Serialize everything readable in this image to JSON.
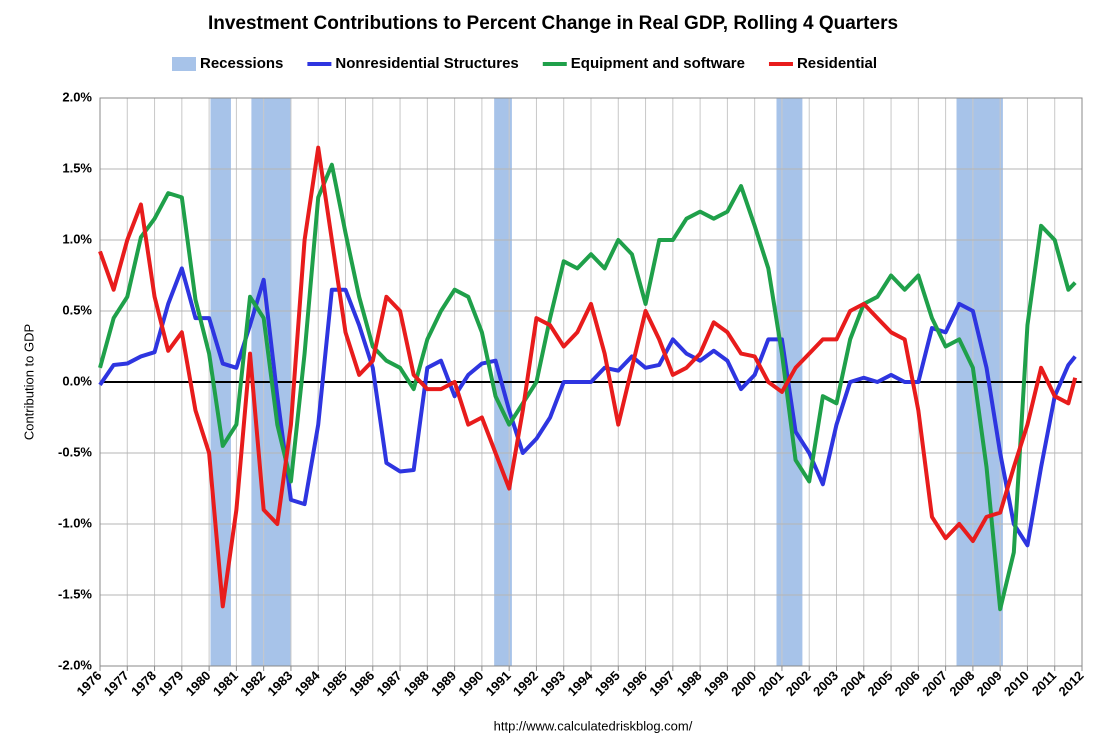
{
  "chart_data": {
    "type": "line",
    "title": "Investment Contributions to Percent Change in Real GDP, Rolling 4 Quarters",
    "y_label": "Contribution to GDP",
    "source": "http://www.calculatedriskblog.com/",
    "xlim": [
      1976,
      2012
    ],
    "xticks": [
      1976,
      1977,
      1978,
      1979,
      1980,
      1981,
      1982,
      1983,
      1984,
      1985,
      1986,
      1987,
      1988,
      1989,
      1990,
      1991,
      1992,
      1993,
      1994,
      1995,
      1996,
      1997,
      1998,
      1999,
      2000,
      2001,
      2002,
      2003,
      2004,
      2005,
      2006,
      2007,
      2008,
      2009,
      2010,
      2011,
      2012
    ],
    "ylim": [
      -2,
      2
    ],
    "yticks": [
      {
        "value": -2,
        "label": "-2.0%"
      },
      {
        "value": -1.5,
        "label": "-1.5%"
      },
      {
        "value": -1,
        "label": "-1.0%"
      },
      {
        "value": -0.5,
        "label": "-0.5%"
      },
      {
        "value": 0,
        "label": "0.0%"
      },
      {
        "value": 0.5,
        "label": "0.5%"
      },
      {
        "value": 1,
        "label": "1.0%"
      },
      {
        "value": 1.5,
        "label": "1.5%"
      },
      {
        "value": 2,
        "label": "2.0%"
      }
    ],
    "grid": true,
    "recessions": {
      "name": "Recessions",
      "color": "#a7c3e9",
      "ranges": [
        [
          1980.05,
          1980.8
        ],
        [
          1981.55,
          1983.0
        ],
        [
          1990.45,
          1991.1
        ],
        [
          2000.8,
          2001.75
        ],
        [
          2007.4,
          2009.1
        ]
      ]
    },
    "x": [
      1976,
      1976.5,
      1977,
      1977.5,
      1978,
      1978.5,
      1979,
      1979.5,
      1980,
      1980.5,
      1981,
      1981.5,
      1982,
      1982.5,
      1983,
      1983.5,
      1984,
      1984.5,
      1985,
      1985.5,
      1986,
      1986.5,
      1987,
      1987.5,
      1988,
      1988.5,
      1989,
      1989.5,
      1990,
      1990.5,
      1991,
      1991.5,
      1992,
      1992.5,
      1993,
      1993.5,
      1994,
      1994.5,
      1995,
      1995.5,
      1996,
      1996.5,
      1997,
      1997.5,
      1998,
      1998.5,
      1999,
      1999.5,
      2000,
      2000.5,
      2001,
      2001.5,
      2002,
      2002.5,
      2003,
      2003.5,
      2004,
      2004.5,
      2005,
      2005.5,
      2006,
      2006.5,
      2007,
      2007.5,
      2008,
      2008.5,
      2009,
      2009.5,
      2010,
      2010.5,
      2011,
      2011.5,
      2011.75
    ],
    "series": [
      {
        "name": "Nonresidential Structures",
        "color": "#2e35e0",
        "values": [
          -0.02,
          0.12,
          0.13,
          0.18,
          0.21,
          0.55,
          0.8,
          0.45,
          0.45,
          0.13,
          0.1,
          0.4,
          0.72,
          -0.1,
          -0.83,
          -0.86,
          -0.3,
          0.65,
          0.65,
          0.4,
          0.1,
          -0.57,
          -0.63,
          -0.62,
          0.1,
          0.15,
          -0.1,
          0.05,
          0.13,
          0.15,
          -0.2,
          -0.5,
          -0.4,
          -0.25,
          0.0,
          0.0,
          0.0,
          0.1,
          0.08,
          0.18,
          0.1,
          0.12,
          0.3,
          0.2,
          0.15,
          0.22,
          0.15,
          -0.05,
          0.05,
          0.3,
          0.3,
          -0.35,
          -0.5,
          -0.72,
          -0.3,
          0.0,
          0.03,
          0.0,
          0.05,
          0.0,
          0.0,
          0.38,
          0.35,
          0.55,
          0.5,
          0.1,
          -0.5,
          -1.0,
          -1.15,
          -0.6,
          -0.1,
          0.12,
          0.18
        ]
      },
      {
        "name": "Equipment and software",
        "color": "#1fa04a",
        "values": [
          0.1,
          0.45,
          0.6,
          1.02,
          1.15,
          1.33,
          1.3,
          0.58,
          0.2,
          -0.45,
          -0.3,
          0.6,
          0.45,
          -0.3,
          -0.7,
          0.2,
          1.3,
          1.53,
          1.05,
          0.6,
          0.25,
          0.15,
          0.1,
          -0.05,
          0.3,
          0.5,
          0.65,
          0.6,
          0.35,
          -0.1,
          -0.3,
          -0.15,
          0.0,
          0.45,
          0.85,
          0.8,
          0.9,
          0.8,
          1.0,
          0.9,
          0.55,
          1.0,
          1.0,
          1.15,
          1.2,
          1.15,
          1.2,
          1.38,
          1.1,
          0.8,
          0.2,
          -0.55,
          -0.7,
          -0.1,
          -0.15,
          0.3,
          0.55,
          0.6,
          0.75,
          0.65,
          0.75,
          0.45,
          0.25,
          0.3,
          0.1,
          -0.6,
          -1.6,
          -1.2,
          0.4,
          1.1,
          1.0,
          0.65,
          0.7
        ]
      },
      {
        "name": "Residential",
        "color": "#e81c1c",
        "values": [
          0.92,
          0.65,
          1.0,
          1.25,
          0.6,
          0.22,
          0.35,
          -0.2,
          -0.5,
          -1.58,
          -0.9,
          0.2,
          -0.9,
          -1.0,
          -0.3,
          1.0,
          1.65,
          1.0,
          0.35,
          0.05,
          0.15,
          0.6,
          0.5,
          0.05,
          -0.05,
          -0.05,
          0.0,
          -0.3,
          -0.25,
          -0.5,
          -0.75,
          -0.2,
          0.45,
          0.4,
          0.25,
          0.35,
          0.55,
          0.2,
          -0.3,
          0.1,
          0.5,
          0.3,
          0.05,
          0.1,
          0.2,
          0.42,
          0.35,
          0.2,
          0.18,
          0.0,
          -0.07,
          0.1,
          0.2,
          0.3,
          0.3,
          0.5,
          0.55,
          0.45,
          0.35,
          0.3,
          -0.2,
          -0.95,
          -1.1,
          -1.0,
          -1.12,
          -0.95,
          -0.92,
          -0.6,
          -0.3,
          0.1,
          -0.1,
          -0.15,
          0.03
        ]
      }
    ]
  }
}
